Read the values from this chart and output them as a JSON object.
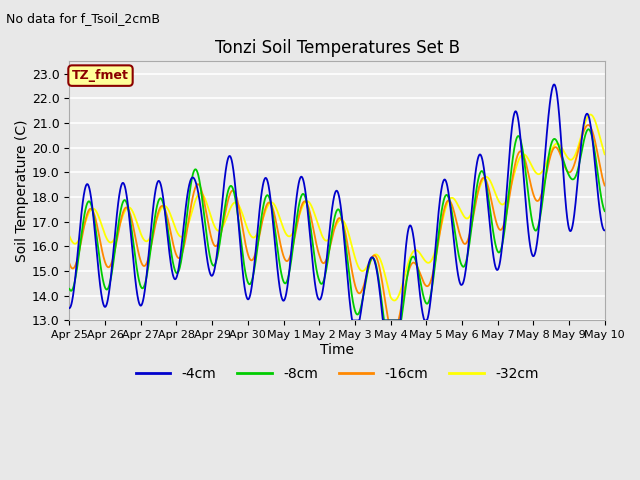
{
  "title": "Tonzi Soil Temperatures Set B",
  "subtitle": "No data for f_Tsoil_2cmB",
  "xlabel": "Time",
  "ylabel": "Soil Temperature (C)",
  "ylim": [
    13.0,
    23.5
  ],
  "yticks": [
    13.0,
    14.0,
    15.0,
    16.0,
    17.0,
    18.0,
    19.0,
    20.0,
    21.0,
    22.0,
    23.0
  ],
  "bg_color": "#e8e8e8",
  "plot_bg_color": "#ebebeb",
  "legend_label": "TZ_fmet",
  "lines": [
    {
      "label": "-4cm",
      "color": "#0000cc"
    },
    {
      "label": "-8cm",
      "color": "#00cc00"
    },
    {
      "label": "-16cm",
      "color": "#ff8800"
    },
    {
      "label": "-32cm",
      "color": "#ffff00"
    }
  ],
  "xtick_labels": [
    "Apr 25",
    "Apr 26",
    "Apr 27",
    "Apr 28",
    "Apr 29",
    "Apr 30",
    "May 1",
    "May 2",
    "May 3",
    "May 4",
    "May 5",
    "May 6",
    "May 7",
    "May 8",
    "May 9",
    "May 10"
  ],
  "figsize": [
    6.4,
    4.8
  ],
  "dpi": 100
}
